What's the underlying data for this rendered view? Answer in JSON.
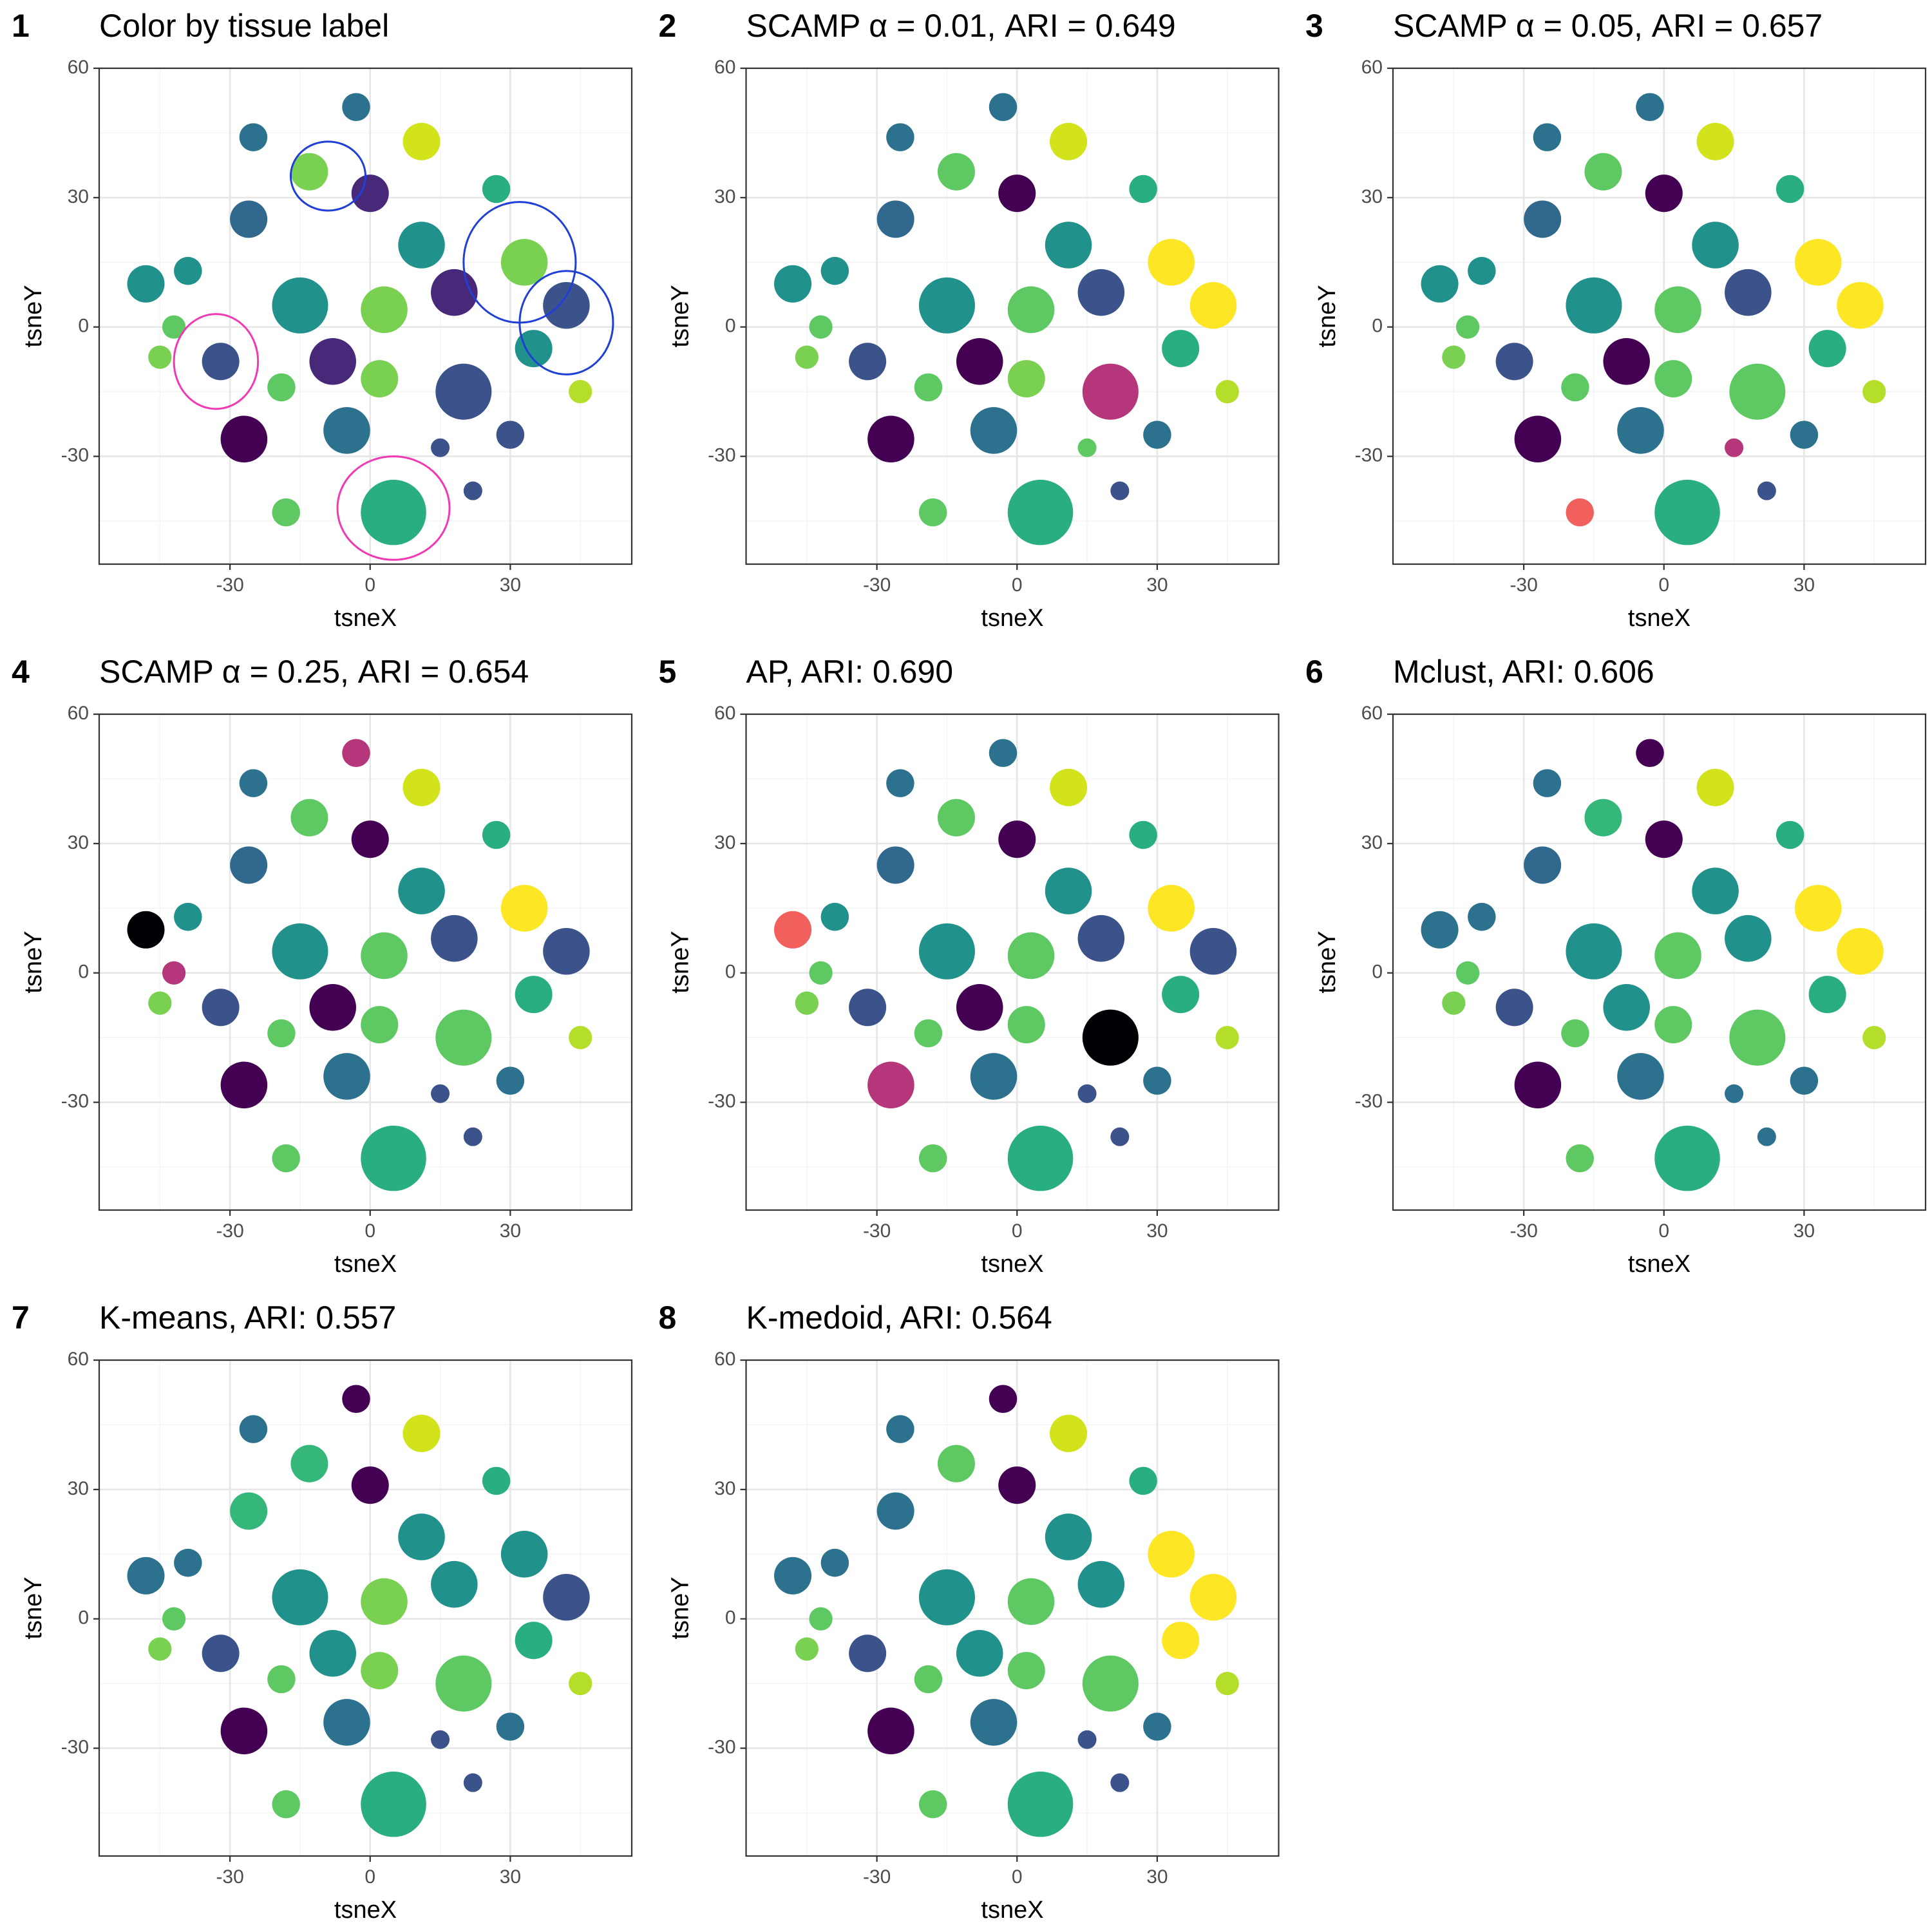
{
  "chart_data": [
    {
      "type": "scatter",
      "label": "1",
      "title": "Color by tissue label",
      "xlabel": "tsneX",
      "ylabel": "tsneY",
      "xlim": [
        -58,
        56
      ],
      "ylim": [
        -55,
        60
      ],
      "xticks": [
        -30,
        0,
        30
      ],
      "yticks": [
        -30,
        0,
        30,
        60
      ],
      "grid": true,
      "x": [
        -3,
        -25,
        11,
        -13,
        0,
        27,
        -26,
        11,
        -48,
        -39,
        -15,
        3,
        18,
        33,
        42,
        35,
        -32,
        -45,
        -42,
        -8,
        2,
        20,
        -19,
        -27,
        -5,
        15,
        30,
        5,
        -18,
        22,
        45
      ],
      "y": [
        51,
        44,
        43,
        36,
        31,
        32,
        25,
        19,
        10,
        13,
        5,
        4,
        8,
        15,
        5,
        -5,
        -8,
        -7,
        0,
        -8,
        -12,
        -15,
        -14,
        -26,
        -24,
        -28,
        -25,
        -43,
        -43,
        -38,
        -15
      ],
      "sizes": [
        3,
        3,
        4,
        4,
        4,
        3,
        4,
        5,
        4,
        3,
        6,
        5,
        5,
        5,
        5,
        4,
        4,
        2.5,
        2.5,
        5,
        4,
        6,
        3,
        5,
        5,
        2,
        3,
        7,
        3,
        2,
        2.5
      ],
      "colors": [
        "#2c728e",
        "#2c728e",
        "#d2e21b",
        "#7ad151",
        "#482878",
        "#29af7f",
        "#31688e",
        "#21918c",
        "#21918c",
        "#21918c",
        "#21918c",
        "#7ad151",
        "#482878",
        "#7ad151",
        "#3b528b",
        "#21918c",
        "#3b528b",
        "#7ad151",
        "#5ec962",
        "#482878",
        "#7ad151",
        "#3b528b",
        "#5ec962",
        "#440154",
        "#2c728e",
        "#3b528b",
        "#3b528b",
        "#29af7f",
        "#5ec962",
        "#3b528b",
        "#b5de2b"
      ]
    },
    {
      "type": "scatter",
      "label": "2",
      "title": "SCAMP  α  = 0.01, ARI = 0.649",
      "xlabel": "tsneX",
      "ylabel": "tsneY",
      "xlim": [
        -58,
        56
      ],
      "ylim": [
        -55,
        60
      ],
      "xticks": [
        -30,
        0,
        30
      ],
      "yticks": [
        -30,
        0,
        30,
        60
      ],
      "grid": true,
      "x": [
        -3,
        -25,
        11,
        -13,
        0,
        27,
        -26,
        11,
        -48,
        -39,
        -15,
        3,
        18,
        33,
        42,
        35,
        -32,
        -45,
        -42,
        -8,
        2,
        20,
        -19,
        -27,
        -5,
        15,
        30,
        5,
        -18,
        22,
        45
      ],
      "y": [
        51,
        44,
        43,
        36,
        31,
        32,
        25,
        19,
        10,
        13,
        5,
        4,
        8,
        15,
        5,
        -5,
        -8,
        -7,
        0,
        -8,
        -12,
        -15,
        -14,
        -26,
        -24,
        -28,
        -25,
        -43,
        -43,
        -38,
        -15
      ],
      "sizes": [
        3,
        3,
        4,
        4,
        4,
        3,
        4,
        5,
        4,
        3,
        6,
        5,
        5,
        5,
        5,
        4,
        4,
        2.5,
        2.5,
        5,
        4,
        6,
        3,
        5,
        5,
        2,
        3,
        7,
        3,
        2,
        2.5
      ],
      "colors": [
        "#2c728e",
        "#2c728e",
        "#d2e21b",
        "#5ec962",
        "#440154",
        "#29af7f",
        "#31688e",
        "#21918c",
        "#21918c",
        "#21918c",
        "#21918c",
        "#5ec962",
        "#3b528b",
        "#fde725",
        "#fde725",
        "#29af7f",
        "#3b528b",
        "#7ad151",
        "#5ec962",
        "#440154",
        "#7ad151",
        "#b5367a",
        "#5ec962",
        "#440154",
        "#2c728e",
        "#5ec962",
        "#2c728e",
        "#29af7f",
        "#5ec962",
        "#3b528b",
        "#b5de2b"
      ]
    },
    {
      "type": "scatter",
      "label": "3",
      "title": "SCAMP  α  = 0.05, ARI = 0.657",
      "xlabel": "tsneX",
      "ylabel": "tsneY",
      "xlim": [
        -58,
        56
      ],
      "ylim": [
        -55,
        60
      ],
      "xticks": [
        -30,
        0,
        30
      ],
      "yticks": [
        -30,
        0,
        30,
        60
      ],
      "grid": true,
      "x": [
        -3,
        -25,
        11,
        -13,
        0,
        27,
        -26,
        11,
        -48,
        -39,
        -15,
        3,
        18,
        33,
        42,
        35,
        -32,
        -45,
        -42,
        -8,
        2,
        20,
        -19,
        -27,
        -5,
        15,
        30,
        5,
        -18,
        22,
        45
      ],
      "y": [
        51,
        44,
        43,
        36,
        31,
        32,
        25,
        19,
        10,
        13,
        5,
        4,
        8,
        15,
        5,
        -5,
        -8,
        -7,
        0,
        -8,
        -12,
        -15,
        -14,
        -26,
        -24,
        -28,
        -25,
        -43,
        -43,
        -38,
        -15
      ],
      "sizes": [
        3,
        3,
        4,
        4,
        4,
        3,
        4,
        5,
        4,
        3,
        6,
        5,
        5,
        5,
        5,
        4,
        4,
        2.5,
        2.5,
        5,
        4,
        6,
        3,
        5,
        5,
        2,
        3,
        7,
        3,
        2,
        2.5
      ],
      "colors": [
        "#2c728e",
        "#2c728e",
        "#d2e21b",
        "#5ec962",
        "#440154",
        "#29af7f",
        "#31688e",
        "#21918c",
        "#21918c",
        "#21918c",
        "#21918c",
        "#5ec962",
        "#3b528b",
        "#fde725",
        "#fde725",
        "#29af7f",
        "#3b528b",
        "#7ad151",
        "#5ec962",
        "#440154",
        "#5ec962",
        "#5ec962",
        "#5ec962",
        "#440154",
        "#2c728e",
        "#b5367a",
        "#2c728e",
        "#29af7f",
        "#f1605d",
        "#3b528b",
        "#b5de2b"
      ]
    },
    {
      "type": "scatter",
      "label": "4",
      "title": "SCAMP  α  = 0.25, ARI = 0.654",
      "xlabel": "tsneX",
      "ylabel": "tsneY",
      "xlim": [
        -58,
        56
      ],
      "ylim": [
        -55,
        60
      ],
      "xticks": [
        -30,
        0,
        30
      ],
      "yticks": [
        -30,
        0,
        30,
        60
      ],
      "grid": true,
      "x": [
        -3,
        -25,
        11,
        -13,
        0,
        27,
        -26,
        11,
        -48,
        -39,
        -15,
        3,
        18,
        33,
        42,
        35,
        -32,
        -45,
        -42,
        -8,
        2,
        20,
        -19,
        -27,
        -5,
        15,
        30,
        5,
        -18,
        22,
        45
      ],
      "y": [
        51,
        44,
        43,
        36,
        31,
        32,
        25,
        19,
        10,
        13,
        5,
        4,
        8,
        15,
        5,
        -5,
        -8,
        -7,
        0,
        -8,
        -12,
        -15,
        -14,
        -26,
        -24,
        -28,
        -25,
        -43,
        -43,
        -38,
        -15
      ],
      "sizes": [
        3,
        3,
        4,
        4,
        4,
        3,
        4,
        5,
        4,
        3,
        6,
        5,
        5,
        5,
        5,
        4,
        4,
        2.5,
        2.5,
        5,
        4,
        6,
        3,
        5,
        5,
        2,
        3,
        7,
        3,
        2,
        2.5
      ],
      "colors": [
        "#b5367a",
        "#2c728e",
        "#d2e21b",
        "#5ec962",
        "#440154",
        "#29af7f",
        "#31688e",
        "#21918c",
        "#000004",
        "#21918c",
        "#21918c",
        "#5ec962",
        "#3b528b",
        "#fde725",
        "#3b528b",
        "#29af7f",
        "#3b528b",
        "#7ad151",
        "#b5367a",
        "#440154",
        "#5ec962",
        "#5ec962",
        "#5ec962",
        "#440154",
        "#2c728e",
        "#3b528b",
        "#2c728e",
        "#29af7f",
        "#5ec962",
        "#3b528b",
        "#b5de2b"
      ]
    },
    {
      "type": "scatter",
      "label": "5",
      "title": "AP, ARI: 0.690",
      "xlabel": "tsneX",
      "ylabel": "tsneY",
      "xlim": [
        -58,
        56
      ],
      "ylim": [
        -55,
        60
      ],
      "xticks": [
        -30,
        0,
        30
      ],
      "yticks": [
        -30,
        0,
        30,
        60
      ],
      "grid": true,
      "x": [
        -3,
        -25,
        11,
        -13,
        0,
        27,
        -26,
        11,
        -48,
        -39,
        -15,
        3,
        18,
        33,
        42,
        35,
        -32,
        -45,
        -42,
        -8,
        2,
        20,
        -19,
        -27,
        -5,
        15,
        30,
        5,
        -18,
        22,
        45
      ],
      "y": [
        51,
        44,
        43,
        36,
        31,
        32,
        25,
        19,
        10,
        13,
        5,
        4,
        8,
        15,
        5,
        -5,
        -8,
        -7,
        0,
        -8,
        -12,
        -15,
        -14,
        -26,
        -24,
        -28,
        -25,
        -43,
        -43,
        -38,
        -15
      ],
      "sizes": [
        3,
        3,
        4,
        4,
        4,
        3,
        4,
        5,
        4,
        3,
        6,
        5,
        5,
        5,
        5,
        4,
        4,
        2.5,
        2.5,
        5,
        4,
        6,
        3,
        5,
        5,
        2,
        3,
        7,
        3,
        2,
        2.5
      ],
      "colors": [
        "#2c728e",
        "#2c728e",
        "#d2e21b",
        "#5ec962",
        "#440154",
        "#29af7f",
        "#31688e",
        "#21918c",
        "#f1605d",
        "#21918c",
        "#21918c",
        "#5ec962",
        "#3b528b",
        "#fde725",
        "#3b528b",
        "#29af7f",
        "#3b528b",
        "#7ad151",
        "#5ec962",
        "#440154",
        "#5ec962",
        "#000004",
        "#5ec962",
        "#b5367a",
        "#2c728e",
        "#3b528b",
        "#2c728e",
        "#29af7f",
        "#5ec962",
        "#3b528b",
        "#b5de2b"
      ]
    },
    {
      "type": "scatter",
      "label": "6",
      "title": "Mclust, ARI: 0.606",
      "xlabel": "tsneX",
      "ylabel": "tsneY",
      "xlim": [
        -58,
        56
      ],
      "ylim": [
        -55,
        60
      ],
      "xticks": [
        -30,
        0,
        30
      ],
      "yticks": [
        -30,
        0,
        30,
        60
      ],
      "grid": true,
      "x": [
        -3,
        -25,
        11,
        -13,
        0,
        27,
        -26,
        11,
        -48,
        -39,
        -15,
        3,
        18,
        33,
        42,
        35,
        -32,
        -45,
        -42,
        -8,
        2,
        20,
        -19,
        -27,
        -5,
        15,
        30,
        5,
        -18,
        22,
        45
      ],
      "y": [
        51,
        44,
        43,
        36,
        31,
        32,
        25,
        19,
        10,
        13,
        5,
        4,
        8,
        15,
        5,
        -5,
        -8,
        -7,
        0,
        -8,
        -12,
        -15,
        -14,
        -26,
        -24,
        -28,
        -25,
        -43,
        -43,
        -38,
        -15
      ],
      "sizes": [
        3,
        3,
        4,
        4,
        4,
        3,
        4,
        5,
        4,
        3,
        6,
        5,
        5,
        5,
        5,
        4,
        4,
        2.5,
        2.5,
        5,
        4,
        6,
        3,
        5,
        5,
        2,
        3,
        7,
        3,
        2,
        2.5
      ],
      "colors": [
        "#440154",
        "#2c728e",
        "#d2e21b",
        "#35b779",
        "#440154",
        "#29af7f",
        "#31688e",
        "#21918c",
        "#2c728e",
        "#2c728e",
        "#21918c",
        "#5ec962",
        "#21918c",
        "#fde725",
        "#fde725",
        "#29af7f",
        "#3b528b",
        "#7ad151",
        "#5ec962",
        "#21918c",
        "#5ec962",
        "#5ec962",
        "#5ec962",
        "#440154",
        "#2c728e",
        "#2c728e",
        "#2c728e",
        "#29af7f",
        "#5ec962",
        "#2c728e",
        "#b5de2b"
      ]
    },
    {
      "type": "scatter",
      "label": "7",
      "title": "K-means, ARI: 0.557",
      "xlabel": "tsneX",
      "ylabel": "tsneY",
      "xlim": [
        -58,
        56
      ],
      "ylim": [
        -55,
        60
      ],
      "xticks": [
        -30,
        0,
        30
      ],
      "yticks": [
        -30,
        0,
        30,
        60
      ],
      "grid": true,
      "x": [
        -3,
        -25,
        11,
        -13,
        0,
        27,
        -26,
        11,
        -48,
        -39,
        -15,
        3,
        18,
        33,
        42,
        35,
        -32,
        -45,
        -42,
        -8,
        2,
        20,
        -19,
        -27,
        -5,
        15,
        30,
        5,
        -18,
        22,
        45
      ],
      "y": [
        51,
        44,
        43,
        36,
        31,
        32,
        25,
        19,
        10,
        13,
        5,
        4,
        8,
        15,
        5,
        -5,
        -8,
        -7,
        0,
        -8,
        -12,
        -15,
        -14,
        -26,
        -24,
        -28,
        -25,
        -43,
        -43,
        -38,
        -15
      ],
      "sizes": [
        3,
        3,
        4,
        4,
        4,
        3,
        4,
        5,
        4,
        3,
        6,
        5,
        5,
        5,
        5,
        4,
        4,
        2.5,
        2.5,
        5,
        4,
        6,
        3,
        5,
        5,
        2,
        3,
        7,
        3,
        2,
        2.5
      ],
      "colors": [
        "#440154",
        "#2c728e",
        "#d2e21b",
        "#35b779",
        "#440154",
        "#29af7f",
        "#35b779",
        "#21918c",
        "#2c728e",
        "#2c728e",
        "#21918c",
        "#7ad151",
        "#21918c",
        "#21918c",
        "#3b528b",
        "#29af7f",
        "#3b528b",
        "#7ad151",
        "#5ec962",
        "#21918c",
        "#7ad151",
        "#5ec962",
        "#5ec962",
        "#440154",
        "#2c728e",
        "#3b528b",
        "#2c728e",
        "#29af7f",
        "#5ec962",
        "#3b528b",
        "#b5de2b"
      ]
    },
    {
      "type": "scatter",
      "label": "8",
      "title": "K-medoid, ARI: 0.564",
      "xlabel": "tsneX",
      "ylabel": "tsneY",
      "xlim": [
        -58,
        56
      ],
      "ylim": [
        -55,
        60
      ],
      "xticks": [
        -30,
        0,
        30
      ],
      "yticks": [
        -30,
        0,
        30,
        60
      ],
      "grid": true,
      "x": [
        -3,
        -25,
        11,
        -13,
        0,
        27,
        -26,
        11,
        -48,
        -39,
        -15,
        3,
        18,
        33,
        42,
        35,
        -32,
        -45,
        -42,
        -8,
        2,
        20,
        -19,
        -27,
        -5,
        15,
        30,
        5,
        -18,
        22,
        45
      ],
      "y": [
        51,
        44,
        43,
        36,
        31,
        32,
        25,
        19,
        10,
        13,
        5,
        4,
        8,
        15,
        5,
        -5,
        -8,
        -7,
        0,
        -8,
        -12,
        -15,
        -14,
        -26,
        -24,
        -28,
        -25,
        -43,
        -43,
        -38,
        -15
      ],
      "sizes": [
        3,
        3,
        4,
        4,
        4,
        3,
        4,
        5,
        4,
        3,
        6,
        5,
        5,
        5,
        5,
        4,
        4,
        2.5,
        2.5,
        5,
        4,
        6,
        3,
        5,
        5,
        2,
        3,
        7,
        3,
        2,
        2.5
      ],
      "colors": [
        "#440154",
        "#2c728e",
        "#d2e21b",
        "#5ec962",
        "#440154",
        "#29af7f",
        "#2c728e",
        "#21918c",
        "#2c728e",
        "#2c728e",
        "#21918c",
        "#5ec962",
        "#21918c",
        "#fde725",
        "#fde725",
        "#fde725",
        "#3b528b",
        "#7ad151",
        "#5ec962",
        "#21918c",
        "#5ec962",
        "#5ec962",
        "#5ec962",
        "#440154",
        "#2c728e",
        "#3b528b",
        "#2c728e",
        "#29af7f",
        "#5ec962",
        "#3b528b",
        "#b5de2b"
      ]
    }
  ]
}
